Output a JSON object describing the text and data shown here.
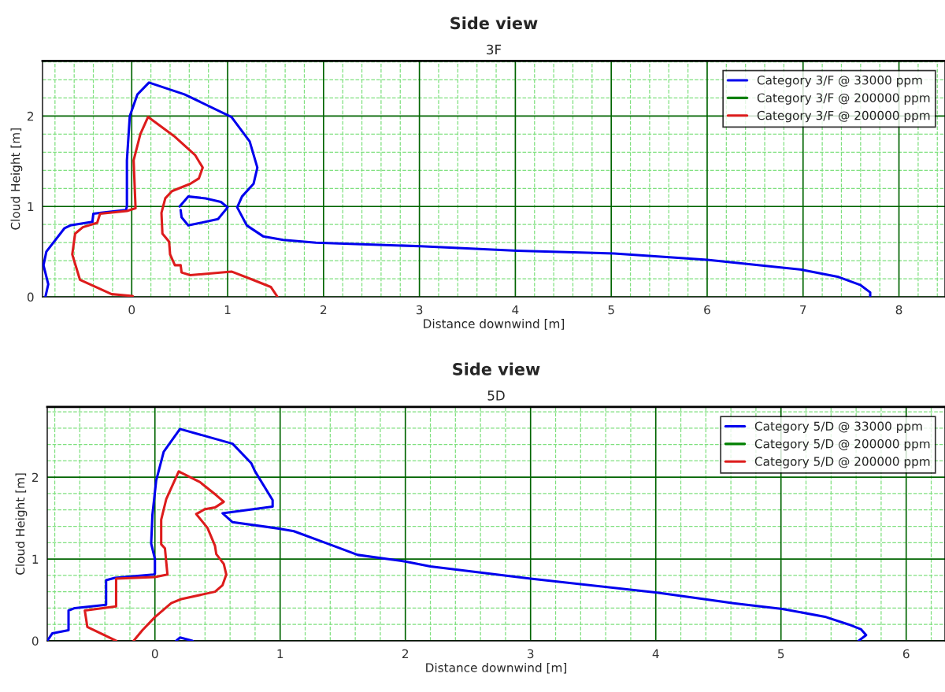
{
  "chart_data": [
    {
      "type": "line",
      "title": "Side view",
      "subtitle": "3F",
      "xlabel": "Distance downwind [m]",
      "ylabel": "Cloud Height [m]",
      "xlim": [
        -0.93,
        8.48
      ],
      "ylim": [
        0,
        2.61
      ],
      "xticks": [
        {
          "value": -0.8,
          "label": null
        },
        {
          "value": -0.6,
          "label": null
        },
        {
          "value": -0.4,
          "label": null
        },
        {
          "value": -0.2,
          "label": null
        },
        0,
        {
          "value": 0.2,
          "label": null
        },
        {
          "value": 0.4,
          "label": null
        },
        {
          "value": 0.6,
          "label": null
        },
        {
          "value": 0.8,
          "label": null
        },
        1,
        {
          "value": 1.2,
          "label": null
        },
        {
          "value": 1.4,
          "label": null
        },
        {
          "value": 1.6,
          "label": null
        },
        {
          "value": 1.8,
          "label": null
        },
        2,
        {
          "value": 2.2,
          "label": null
        },
        {
          "value": 2.4,
          "label": null
        },
        {
          "value": 2.6,
          "label": null
        },
        {
          "value": 2.8,
          "label": null
        },
        3,
        {
          "value": 3.2,
          "label": null
        },
        {
          "value": 3.4,
          "label": null
        },
        {
          "value": 3.6,
          "label": null
        },
        {
          "value": 3.8,
          "label": null
        },
        4,
        {
          "value": 4.2,
          "label": null
        },
        {
          "value": 4.4,
          "label": null
        },
        {
          "value": 4.6,
          "label": null
        },
        {
          "value": 4.8,
          "label": null
        },
        5,
        {
          "value": 5.2,
          "label": null
        },
        {
          "value": 5.4,
          "label": null
        },
        {
          "value": 5.6,
          "label": null
        },
        {
          "value": 5.8,
          "label": null
        },
        6,
        {
          "value": 6.2,
          "label": null
        },
        {
          "value": 6.4,
          "label": null
        },
        {
          "value": 6.6,
          "label": null
        },
        {
          "value": 6.8,
          "label": null
        },
        7,
        {
          "value": 7.2,
          "label": null
        },
        {
          "value": 7.4,
          "label": null
        },
        {
          "value": 7.6,
          "label": null
        },
        {
          "value": 7.8,
          "label": null
        },
        8,
        {
          "value": 8.2,
          "label": null
        },
        {
          "value": 8.4,
          "label": null
        }
      ],
      "yticks": [
        0,
        {
          "value": 0.2,
          "label": null
        },
        {
          "value": 0.4,
          "label": null
        },
        {
          "value": 0.6,
          "label": null
        },
        {
          "value": 0.8,
          "label": null
        },
        1,
        {
          "value": 1.2,
          "label": null
        },
        {
          "value": 1.4,
          "label": null
        },
        {
          "value": 1.6,
          "label": null
        },
        {
          "value": 1.8,
          "label": null
        },
        2,
        {
          "value": 2.2,
          "label": null
        },
        {
          "value": 2.4,
          "label": null
        },
        {
          "value": 2.6,
          "label": null
        }
      ],
      "grid": true,
      "legend": "top right",
      "line_style": "solid",
      "marker": "none",
      "series": [
        {
          "name": "Category 3/F @ 33000 ppm",
          "color": "#0000ee",
          "x": [
            -0.9,
            -0.87,
            -0.92,
            -0.89,
            -0.7,
            -0.64,
            -0.41,
            -0.4,
            -0.32,
            -0.06,
            -0.05,
            -0.05,
            -0.02,
            0.06,
            0.18,
            0.55,
            1.04,
            1.23,
            1.31,
            1.27,
            1.15,
            1.1,
            1.2,
            1.37,
            1.58,
            1.92,
            3.01,
            4.02,
            5.03,
            6.0,
            6.99,
            7.37,
            7.6,
            7.7,
            7.7,
            null,
            0.5,
            0.59,
            0.77,
            0.93,
            1.0,
            0.9,
            0.59,
            0.52,
            0.51
          ],
          "values": [
            0,
            0.14,
            0.35,
            0.5,
            0.76,
            0.79,
            0.83,
            0.92,
            0.93,
            0.96,
            1.0,
            1.51,
            2.0,
            2.24,
            2.37,
            2.24,
            1.99,
            1.72,
            1.43,
            1.25,
            1.11,
            0.99,
            0.79,
            0.67,
            0.63,
            0.6,
            0.56,
            0.51,
            0.48,
            0.41,
            0.3,
            0.22,
            0.13,
            0.05,
            0,
            null,
            1.0,
            1.11,
            1.09,
            1.05,
            0.99,
            0.86,
            0.79,
            0.88,
            0.96
          ]
        },
        {
          "name": "Category 3/F @ 200000 ppm",
          "color": "#008000"
        },
        {
          "name": "Category 3/F @ 200000 ppm",
          "color": "#dd1c1c",
          "x": [
            0.01,
            -0.21,
            -0.54,
            -0.62,
            -0.59,
            -0.51,
            -0.36,
            -0.33,
            -0.05,
            0.04,
            0.02,
            0.09,
            0.17,
            0.44,
            0.66,
            0.74,
            0.7,
            0.61,
            0.42,
            0.35,
            0.31,
            0.32,
            0.39,
            0.4,
            0.45,
            0.51,
            0.52,
            0.61,
            1.04,
            1.26,
            1.45,
            1.52
          ],
          "values": [
            0.01,
            0.03,
            0.19,
            0.47,
            0.7,
            0.77,
            0.82,
            0.92,
            0.95,
            0.98,
            1.51,
            1.8,
            1.99,
            1.78,
            1.57,
            1.43,
            1.31,
            1.25,
            1.17,
            1.09,
            0.93,
            0.7,
            0.61,
            0.47,
            0.35,
            0.35,
            0.27,
            0.24,
            0.28,
            0.19,
            0.11,
            0.0
          ]
        }
      ]
    },
    {
      "type": "line",
      "title": "Side view",
      "subtitle": "5D",
      "xlabel": "Distance downwind [m]",
      "ylabel": "Cloud Height [m]",
      "xlim": [
        -0.86,
        6.31
      ],
      "ylim": [
        0,
        2.86
      ],
      "xticks": [
        {
          "value": -0.8,
          "label": null
        },
        {
          "value": -0.6,
          "label": null
        },
        {
          "value": -0.4,
          "label": null
        },
        {
          "value": -0.2,
          "label": null
        },
        0,
        {
          "value": 0.2,
          "label": null
        },
        {
          "value": 0.4,
          "label": null
        },
        {
          "value": 0.6,
          "label": null
        },
        {
          "value": 0.8,
          "label": null
        },
        1,
        {
          "value": 1.2,
          "label": null
        },
        {
          "value": 1.4,
          "label": null
        },
        {
          "value": 1.6,
          "label": null
        },
        {
          "value": 1.8,
          "label": null
        },
        2,
        {
          "value": 2.2,
          "label": null
        },
        {
          "value": 2.4,
          "label": null
        },
        {
          "value": 2.6,
          "label": null
        },
        {
          "value": 2.8,
          "label": null
        },
        3,
        {
          "value": 3.2,
          "label": null
        },
        {
          "value": 3.4,
          "label": null
        },
        {
          "value": 3.6,
          "label": null
        },
        {
          "value": 3.8,
          "label": null
        },
        4,
        {
          "value": 4.2,
          "label": null
        },
        {
          "value": 4.4,
          "label": null
        },
        {
          "value": 4.6,
          "label": null
        },
        {
          "value": 4.8,
          "label": null
        },
        5,
        {
          "value": 5.2,
          "label": null
        },
        {
          "value": 5.4,
          "label": null
        },
        {
          "value": 5.6,
          "label": null
        },
        {
          "value": 5.8,
          "label": null
        },
        6,
        {
          "value": 6.2,
          "label": null
        }
      ],
      "yticks": [
        0,
        {
          "value": 0.2,
          "label": null
        },
        {
          "value": 0.4,
          "label": null
        },
        {
          "value": 0.6,
          "label": null
        },
        {
          "value": 0.8,
          "label": null
        },
        1,
        {
          "value": 1.2,
          "label": null
        },
        {
          "value": 1.4,
          "label": null
        },
        {
          "value": 1.6,
          "label": null
        },
        {
          "value": 1.8,
          "label": null
        },
        2,
        {
          "value": 2.2,
          "label": null
        },
        {
          "value": 2.4,
          "label": null
        },
        {
          "value": 2.6,
          "label": null
        },
        {
          "value": 2.8,
          "label": null
        }
      ],
      "grid": true,
      "legend": "top right",
      "line_style": "solid",
      "marker": "none",
      "series": [
        {
          "name": "Category 5/D @ 33000 ppm",
          "color": "#0000ee",
          "x": [
            -0.86,
            -0.82,
            -0.69,
            -0.69,
            -0.64,
            -0.39,
            -0.39,
            -0.32,
            -0.01,
            0,
            0,
            -0.03,
            -0.02,
            0.01,
            0.07,
            0.2,
            0.62,
            0.77,
            0.8,
            0.94,
            0.94,
            0.54,
            0.62,
            1.0,
            1.11,
            1.41,
            1.62,
            2.0,
            2.2,
            3.0,
            4.01,
            4.62,
            5.01,
            5.36,
            5.54,
            5.64,
            5.68,
            5.62,
            null,
            0.17,
            0.2,
            0.3
          ],
          "values": [
            0,
            0.09,
            0.13,
            0.37,
            0.4,
            0.44,
            0.74,
            0.77,
            0.81,
            0.82,
            1.0,
            1.19,
            1.54,
            1.96,
            2.31,
            2.59,
            2.41,
            2.17,
            2.07,
            1.72,
            1.64,
            1.56,
            1.45,
            1.37,
            1.34,
            1.17,
            1.05,
            0.97,
            0.91,
            0.76,
            0.59,
            0.46,
            0.39,
            0.29,
            0.2,
            0.14,
            0.07,
            0.0,
            null,
            0,
            0.04,
            0
          ]
        },
        {
          "name": "Category 5/D @ 200000 ppm",
          "color": "#008000"
        },
        {
          "name": "Category 5/D @ 200000 ppm",
          "color": "#dd1c1c",
          "x": [
            -0.31,
            -0.54,
            -0.56,
            -0.31,
            -0.31,
            0,
            0.1,
            0.08,
            0.05,
            0.05,
            0.09,
            0.19,
            0.36,
            0.49,
            0.55,
            0.48,
            0.4,
            0.33,
            0.42,
            0.48,
            0.49,
            0.55,
            0.57,
            0.54,
            0.48,
            0.21,
            0.13,
            0,
            -0.1,
            -0.17
          ],
          "values": [
            0,
            0.17,
            0.37,
            0.42,
            0.76,
            0.78,
            0.81,
            1.13,
            1.18,
            1.48,
            1.73,
            2.07,
            1.94,
            1.78,
            1.7,
            1.63,
            1.61,
            1.55,
            1.38,
            1.16,
            1.06,
            0.94,
            0.81,
            0.68,
            0.6,
            0.51,
            0.46,
            0.29,
            0.13,
            0
          ]
        }
      ]
    }
  ]
}
